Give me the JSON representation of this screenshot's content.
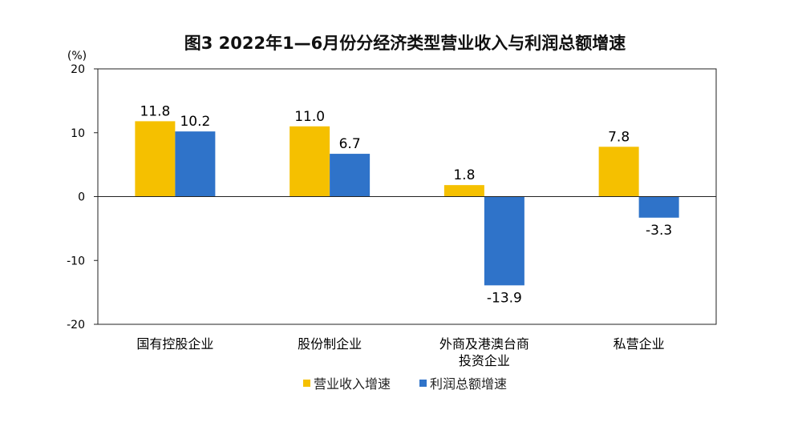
{
  "chart_data": {
    "type": "bar",
    "title": "图3  2022年1—6月份分经济类型营业收入与利润总额增速",
    "unit": "(%)",
    "ylim": [
      -20,
      20
    ],
    "yticks": [
      20,
      10,
      0,
      -10,
      -20
    ],
    "categories": [
      [
        "国有控股企业"
      ],
      [
        "股份制企业"
      ],
      [
        "外商及港澳台商",
        "投资企业"
      ],
      [
        "私营企业"
      ]
    ],
    "series": [
      {
        "name": "营业收入增速",
        "color": "#F5C000",
        "values": [
          11.8,
          11.0,
          1.8,
          7.8
        ],
        "labels": [
          "11.8",
          "11.0",
          "1.8",
          "7.8"
        ]
      },
      {
        "name": "利润总额增速",
        "color": "#2F73C9",
        "values": [
          10.2,
          6.7,
          -13.9,
          -3.3
        ],
        "labels": [
          "10.2",
          "6.7",
          "-13.9",
          "-3.3"
        ]
      }
    ],
    "legend_position": "bottom",
    "grid": false
  }
}
